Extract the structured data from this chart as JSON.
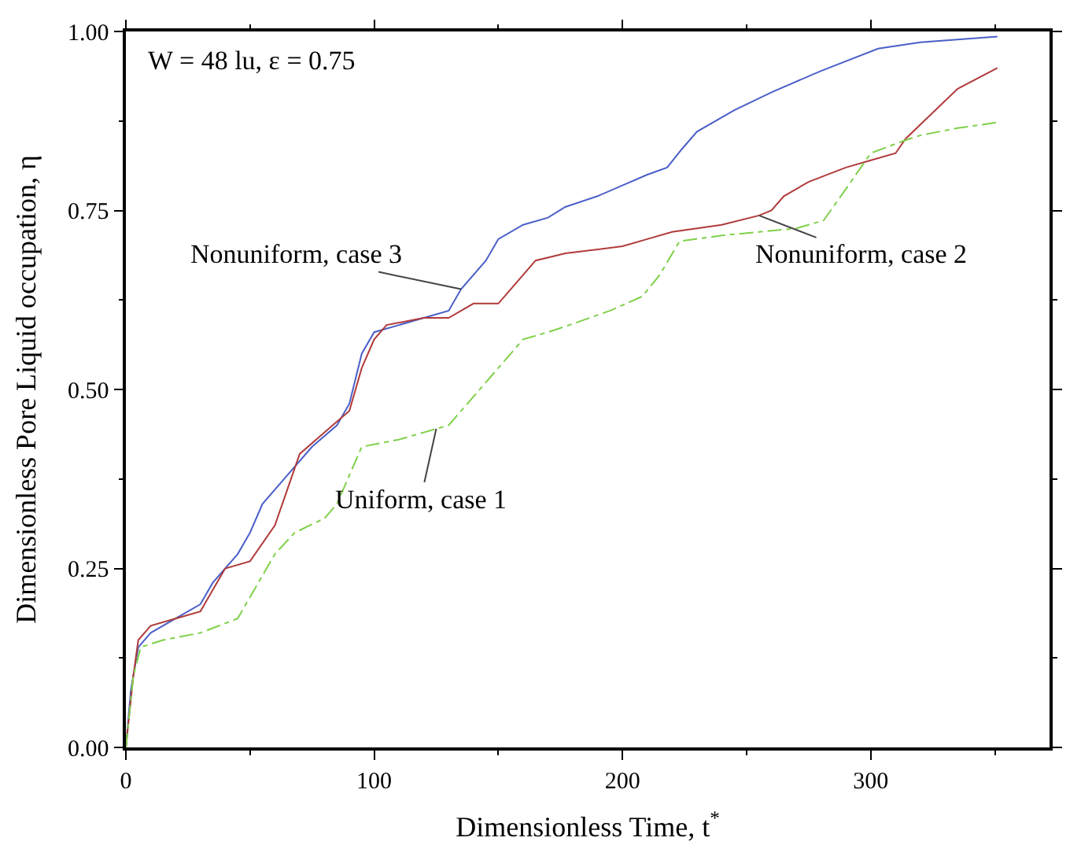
{
  "chart_data": {
    "type": "line",
    "xlabel": "Dimensionless Time, t$^{*}$",
    "ylabel": "Dimensionless Pore Liquid occupation, η",
    "xlim": [
      0,
      372
    ],
    "xticks": [
      0,
      100,
      200,
      300
    ],
    "ylim": [
      0,
      1
    ],
    "yticks": [
      {
        "value": 0,
        "label": "0.00"
      },
      {
        "value": 0.25,
        "label": "0.25"
      },
      {
        "value": 0.5,
        "label": "0.50"
      },
      {
        "value": 0.75,
        "label": "0.75"
      },
      {
        "value": 1,
        "label": "1.00"
      }
    ],
    "marker": "none",
    "series": [
      {
        "color": "#4a5fc8",
        "line_style": "solid",
        "x": [
          0,
          2,
          5,
          10,
          20,
          30,
          35,
          45,
          50,
          55,
          65,
          75,
          85,
          90,
          95,
          100,
          110,
          120,
          130,
          135,
          145,
          150,
          160,
          170,
          177,
          190,
          200,
          210,
          218,
          224,
          230,
          245,
          260,
          280,
          303,
          320,
          351
        ],
        "values": [
          0.0,
          0.08,
          0.14,
          0.16,
          0.18,
          0.2,
          0.23,
          0.27,
          0.3,
          0.34,
          0.38,
          0.42,
          0.45,
          0.48,
          0.55,
          0.58,
          0.59,
          0.6,
          0.61,
          0.64,
          0.68,
          0.71,
          0.73,
          0.74,
          0.755,
          0.77,
          0.785,
          0.8,
          0.81,
          0.836,
          0.86,
          0.89,
          0.915,
          0.945,
          0.976,
          0.985,
          0.993
        ]
      },
      {
        "color": "#b03a3a",
        "line_style": "solid",
        "x": [
          0,
          3,
          5,
          10,
          20,
          30,
          35,
          40,
          50,
          60,
          65,
          70,
          80,
          90,
          95,
          100,
          105,
          120,
          130,
          140,
          150,
          155,
          165,
          177,
          200,
          210,
          220,
          240,
          255,
          260,
          265,
          275,
          290,
          300,
          310,
          314,
          320,
          335,
          351
        ],
        "values": [
          0.0,
          0.1,
          0.15,
          0.17,
          0.18,
          0.19,
          0.22,
          0.25,
          0.26,
          0.31,
          0.36,
          0.41,
          0.44,
          0.47,
          0.53,
          0.57,
          0.59,
          0.6,
          0.6,
          0.62,
          0.62,
          0.64,
          0.68,
          0.69,
          0.7,
          0.71,
          0.72,
          0.73,
          0.743,
          0.75,
          0.77,
          0.79,
          0.81,
          0.82,
          0.83,
          0.85,
          0.87,
          0.92,
          0.949
        ]
      },
      {
        "color": "#7fd04a",
        "line_style": "dashdot",
        "x": [
          0,
          3,
          6,
          15,
          30,
          45,
          50,
          55,
          60,
          68,
          80,
          85,
          95,
          110,
          120,
          130,
          140,
          150,
          160,
          170,
          177,
          195,
          208,
          215,
          223,
          240,
          255,
          270,
          281,
          290,
          300,
          313,
          320,
          335,
          351
        ],
        "values": [
          0.0,
          0.1,
          0.14,
          0.15,
          0.16,
          0.18,
          0.21,
          0.24,
          0.27,
          0.3,
          0.32,
          0.34,
          0.42,
          0.43,
          0.44,
          0.45,
          0.49,
          0.53,
          0.57,
          0.58,
          0.588,
          0.61,
          0.63,
          0.66,
          0.707,
          0.715,
          0.72,
          0.725,
          0.736,
          0.78,
          0.83,
          0.847,
          0.855,
          0.865,
          0.873
        ]
      }
    ],
    "annotations": [
      "W = 48 lu, ε = 0.75",
      {
        "text": "Nonuniform, case 3",
        "x": 135,
        "y": 0.64
      },
      {
        "text": "Nonuniform, case 2",
        "x": 255,
        "y": 0.743
      },
      {
        "text": "Uniform, case 1",
        "x": 125,
        "y": 0.445
      }
    ]
  }
}
